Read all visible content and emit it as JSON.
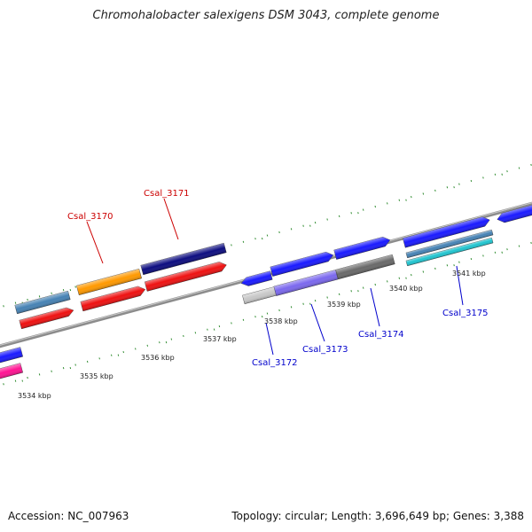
{
  "title": "Chromohalobacter salexigens DSM 3043, complete genome",
  "footer": {
    "accession": "Accession: NC_007963",
    "stats": "Topology: circular; Length: 3,696,649 bp; Genes: 3,388"
  },
  "colors": {
    "background": "#ffffff",
    "backbone": "#8c8c8c",
    "tick": "#2e8b2e",
    "label_red": "#cc0000",
    "label_blue": "#0000cc"
  },
  "scale_labels": [
    "3534 kbp",
    "3535 kbp",
    "3536 kbp",
    "3537 kbp",
    "3538 kbp",
    "3539 kbp",
    "3540 kbp",
    "3541 kbp"
  ],
  "gene_labels": [
    {
      "name": "Csal_3170",
      "color": "#cc0000"
    },
    {
      "name": "Csal_3171",
      "color": "#cc0000"
    },
    {
      "name": "Csal_3172",
      "color": "#0000cc"
    },
    {
      "name": "Csal_3173",
      "color": "#0000cc"
    },
    {
      "name": "Csal_3174",
      "color": "#0000cc"
    },
    {
      "name": "Csal_3175",
      "color": "#0000cc"
    }
  ]
}
